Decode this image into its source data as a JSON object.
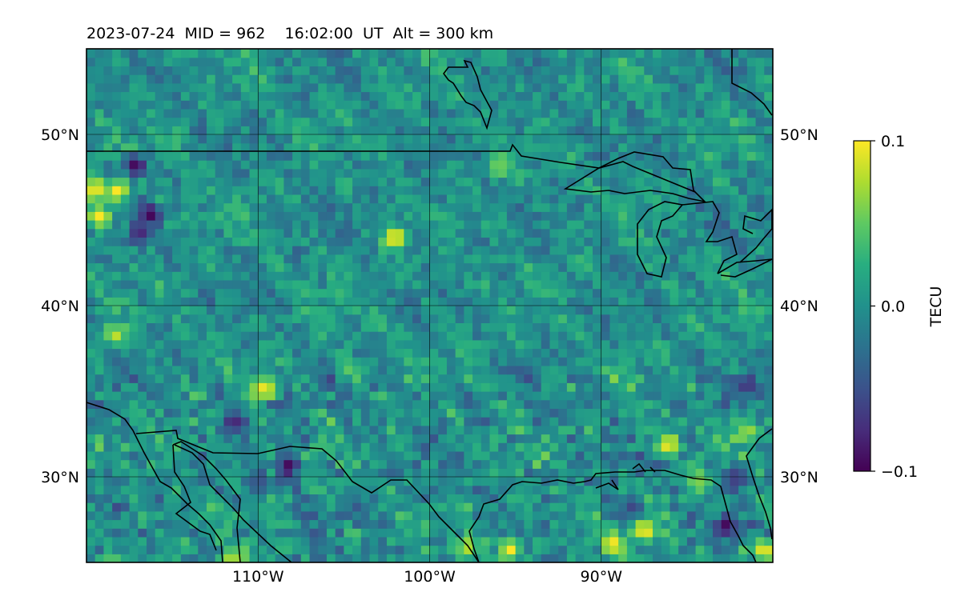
{
  "chart_data": {
    "type": "heatmap",
    "title": "2023-07-24  MID = 962    16:02:00  UT  Alt = 300 km",
    "map_extent": {
      "lon": [
        -120,
        -80
      ],
      "lat": [
        25,
        55
      ]
    },
    "gridlines": true,
    "lon_ticks": [
      -110,
      -100,
      -90
    ],
    "lat_ticks": [
      30,
      40,
      50
    ],
    "lon_tick_labels": [
      "110°W",
      "100°W",
      "90°W"
    ],
    "lat_tick_labels": [
      "30°N",
      "40°N",
      "50°N"
    ],
    "colorbar": {
      "label": "TECU",
      "colormap": "viridis",
      "vmin": -0.1,
      "vmax": 0.1,
      "ticks": [
        -0.1,
        0.0,
        0.1
      ],
      "tick_labels": [
        "−0.1",
        "0.0",
        "0.1"
      ]
    },
    "hotspots": [
      {
        "lon": -109.6,
        "lat": 35.2,
        "value": 0.1
      },
      {
        "lon": -119.5,
        "lat": 46.8,
        "value": 0.1
      },
      {
        "lon": -118.2,
        "lat": 46.7,
        "value": 0.1
      },
      {
        "lon": -119.3,
        "lat": 45.2,
        "value": 0.1
      },
      {
        "lon": -102.0,
        "lat": 44.0,
        "value": 0.1
      },
      {
        "lon": -96.0,
        "lat": 48.1,
        "value": 0.06
      },
      {
        "lon": -118.3,
        "lat": 38.3,
        "value": 0.08
      },
      {
        "lon": -104.8,
        "lat": 36.4,
        "value": 0.05
      },
      {
        "lon": -86.1,
        "lat": 31.9,
        "value": 0.1
      },
      {
        "lon": -81.5,
        "lat": 32.7,
        "value": 0.07
      },
      {
        "lon": -87.5,
        "lat": 26.9,
        "value": 0.1
      },
      {
        "lon": -89.3,
        "lat": 26.1,
        "value": 0.1
      },
      {
        "lon": -80.5,
        "lat": 25.7,
        "value": 0.1
      },
      {
        "lon": -95.3,
        "lat": 25.8,
        "value": 0.1
      },
      {
        "lon": -97.8,
        "lat": 25.9,
        "value": 0.08
      },
      {
        "lon": -111.5,
        "lat": 25.0,
        "value": 0.1
      },
      {
        "lon": -84.3,
        "lat": 29.8,
        "value": 0.06
      },
      {
        "lon": -117.1,
        "lat": 48.2,
        "value": -0.1
      },
      {
        "lon": -116.3,
        "lat": 45.4,
        "value": -0.1
      },
      {
        "lon": -116.9,
        "lat": 44.2,
        "value": -0.08
      },
      {
        "lon": -108.2,
        "lat": 30.6,
        "value": -0.1
      },
      {
        "lon": -82.7,
        "lat": 27.1,
        "value": -0.1
      },
      {
        "lon": -111.4,
        "lat": 33.3,
        "value": -0.08
      },
      {
        "lon": -81.5,
        "lat": 35.3,
        "value": -0.07
      },
      {
        "lon": -88.1,
        "lat": 28.2,
        "value": -0.06
      },
      {
        "lon": -110.0,
        "lat": 29.5,
        "value": -0.05
      },
      {
        "lon": -82.2,
        "lat": 30.0,
        "value": -0.07
      }
    ]
  }
}
